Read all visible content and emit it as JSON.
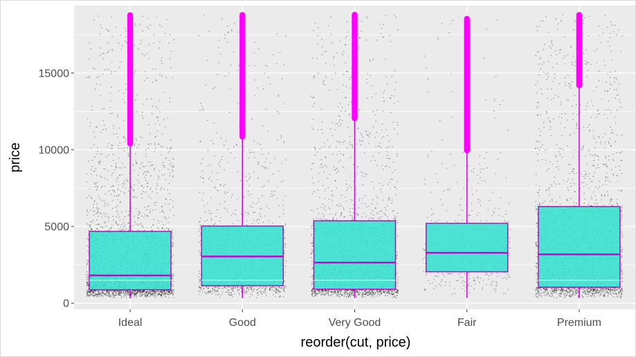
{
  "chart_data": {
    "type": "boxplot",
    "title": "",
    "xlabel": "reorder(cut, price)",
    "ylabel": "price",
    "ylim": [
      -400,
      19400
    ],
    "y_ticks": [
      0,
      5000,
      10000,
      15000
    ],
    "y_tick_labels": [
      "0",
      "5000",
      "10000",
      "15000"
    ],
    "categories": [
      "Ideal",
      "Good",
      "Very Good",
      "Fair",
      "Premium"
    ],
    "boxes": [
      {
        "category": "Ideal",
        "min": 326,
        "q1": 878,
        "median": 1810,
        "q3": 4678,
        "upper_whisker": 10400,
        "outlier_range": [
          10400,
          18806
        ],
        "mean": 1500
      },
      {
        "category": "Good",
        "min": 327,
        "q1": 1145,
        "median": 3050,
        "q3": 5028,
        "upper_whisker": 10850,
        "outlier_range": [
          10850,
          18788
        ],
        "mean": 1500
      },
      {
        "category": "Very Good",
        "min": 336,
        "q1": 912,
        "median": 2648,
        "q3": 5373,
        "upper_whisker": 12050,
        "outlier_range": [
          12050,
          18818
        ],
        "mean": 1500
      },
      {
        "category": "Fair",
        "min": 337,
        "q1": 2050,
        "median": 3282,
        "q3": 5206,
        "upper_whisker": 9950,
        "outlier_range": [
          9950,
          18574
        ],
        "mean": 3300
      },
      {
        "category": "Premium",
        "min": 326,
        "q1": 1046,
        "median": 3185,
        "q3": 6296,
        "upper_whisker": 14200,
        "outlier_range": [
          14200,
          18823
        ],
        "mean": 1500
      }
    ],
    "jitter_points_per_category": [
      2600,
      1100,
      1900,
      500,
      2000
    ],
    "colors": {
      "panel_background": "#ebebeb",
      "grid": "#ffffff",
      "box_fill": "#30e0d0",
      "box_outline": "#cc00cc",
      "outliers": "#ff00ff",
      "mean_line": "#b8f0e8",
      "points": "#000000"
    },
    "grid": true,
    "legend": "none"
  }
}
